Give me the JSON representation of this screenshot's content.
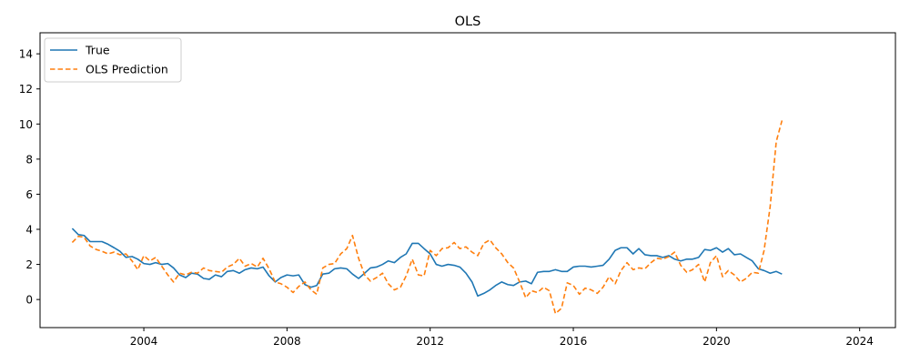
{
  "chart_data": {
    "type": "line",
    "title": "OLS",
    "xlabel": "",
    "ylabel": "",
    "xlim": [
      2001.1,
      2025.0
    ],
    "ylim": [
      -1.6,
      15.2
    ],
    "x_ticks": [
      2004,
      2008,
      2012,
      2016,
      2020,
      2024
    ],
    "x_tick_labels": [
      "2004",
      "2008",
      "2012",
      "2016",
      "2020",
      "2024"
    ],
    "y_ticks": [
      0,
      2,
      4,
      6,
      8,
      10,
      12,
      14
    ],
    "y_tick_labels": [
      "0",
      "2",
      "4",
      "6",
      "8",
      "10",
      "12",
      "14"
    ],
    "grid": false,
    "legend_position": "top-left",
    "series": [
      {
        "name": "True",
        "color": "#1f77b4",
        "dash": "solid",
        "points": [
          [
            2002.0,
            4.05
          ],
          [
            2002.17,
            3.7
          ],
          [
            2002.33,
            3.65
          ],
          [
            2002.5,
            3.3
          ],
          [
            2002.67,
            3.3
          ],
          [
            2002.83,
            3.3
          ],
          [
            2003.0,
            3.15
          ],
          [
            2003.17,
            2.95
          ],
          [
            2003.33,
            2.75
          ],
          [
            2003.5,
            2.4
          ],
          [
            2003.67,
            2.45
          ],
          [
            2003.83,
            2.3
          ],
          [
            2004.0,
            2.05
          ],
          [
            2004.17,
            2.0
          ],
          [
            2004.33,
            2.1
          ],
          [
            2004.5,
            2.0
          ],
          [
            2004.67,
            2.05
          ],
          [
            2004.83,
            1.8
          ],
          [
            2005.0,
            1.4
          ],
          [
            2005.17,
            1.25
          ],
          [
            2005.33,
            1.5
          ],
          [
            2005.5,
            1.45
          ],
          [
            2005.67,
            1.2
          ],
          [
            2005.83,
            1.15
          ],
          [
            2006.0,
            1.4
          ],
          [
            2006.17,
            1.3
          ],
          [
            2006.33,
            1.6
          ],
          [
            2006.5,
            1.65
          ],
          [
            2006.67,
            1.5
          ],
          [
            2006.83,
            1.7
          ],
          [
            2007.0,
            1.8
          ],
          [
            2007.17,
            1.75
          ],
          [
            2007.33,
            1.85
          ],
          [
            2007.5,
            1.35
          ],
          [
            2007.67,
            1.0
          ],
          [
            2007.83,
            1.25
          ],
          [
            2008.0,
            1.4
          ],
          [
            2008.17,
            1.35
          ],
          [
            2008.33,
            1.4
          ],
          [
            2008.5,
            0.85
          ],
          [
            2008.67,
            0.7
          ],
          [
            2008.83,
            0.8
          ],
          [
            2009.0,
            1.45
          ],
          [
            2009.17,
            1.5
          ],
          [
            2009.33,
            1.75
          ],
          [
            2009.5,
            1.8
          ],
          [
            2009.67,
            1.75
          ],
          [
            2009.83,
            1.45
          ],
          [
            2010.0,
            1.2
          ],
          [
            2010.17,
            1.5
          ],
          [
            2010.33,
            1.8
          ],
          [
            2010.5,
            1.85
          ],
          [
            2010.67,
            2.0
          ],
          [
            2010.83,
            2.2
          ],
          [
            2011.0,
            2.1
          ],
          [
            2011.17,
            2.4
          ],
          [
            2011.33,
            2.6
          ],
          [
            2011.5,
            3.2
          ],
          [
            2011.67,
            3.2
          ],
          [
            2011.83,
            2.9
          ],
          [
            2012.0,
            2.6
          ],
          [
            2012.17,
            2.0
          ],
          [
            2012.33,
            1.9
          ],
          [
            2012.5,
            2.0
          ],
          [
            2012.67,
            1.95
          ],
          [
            2012.83,
            1.85
          ],
          [
            2013.0,
            1.5
          ],
          [
            2013.17,
            1.0
          ],
          [
            2013.33,
            0.2
          ],
          [
            2013.5,
            0.35
          ],
          [
            2013.67,
            0.55
          ],
          [
            2013.83,
            0.8
          ],
          [
            2014.0,
            1.0
          ],
          [
            2014.17,
            0.85
          ],
          [
            2014.33,
            0.8
          ],
          [
            2014.5,
            1.0
          ],
          [
            2014.67,
            1.05
          ],
          [
            2014.83,
            0.9
          ],
          [
            2015.0,
            1.55
          ],
          [
            2015.17,
            1.6
          ],
          [
            2015.33,
            1.6
          ],
          [
            2015.5,
            1.7
          ],
          [
            2015.67,
            1.6
          ],
          [
            2015.83,
            1.6
          ],
          [
            2016.0,
            1.85
          ],
          [
            2016.17,
            1.9
          ],
          [
            2016.33,
            1.9
          ],
          [
            2016.5,
            1.85
          ],
          [
            2016.67,
            1.9
          ],
          [
            2016.83,
            1.95
          ],
          [
            2017.0,
            2.3
          ],
          [
            2017.17,
            2.8
          ],
          [
            2017.33,
            2.95
          ],
          [
            2017.5,
            2.95
          ],
          [
            2017.67,
            2.6
          ],
          [
            2017.83,
            2.9
          ],
          [
            2018.0,
            2.55
          ],
          [
            2018.17,
            2.5
          ],
          [
            2018.33,
            2.5
          ],
          [
            2018.5,
            2.4
          ],
          [
            2018.67,
            2.5
          ],
          [
            2018.83,
            2.3
          ],
          [
            2019.0,
            2.2
          ],
          [
            2019.17,
            2.3
          ],
          [
            2019.33,
            2.3
          ],
          [
            2019.5,
            2.4
          ],
          [
            2019.67,
            2.85
          ],
          [
            2019.83,
            2.8
          ],
          [
            2020.0,
            2.95
          ],
          [
            2020.17,
            2.7
          ],
          [
            2020.33,
            2.9
          ],
          [
            2020.5,
            2.55
          ],
          [
            2020.67,
            2.6
          ],
          [
            2020.83,
            2.4
          ],
          [
            2021.0,
            2.2
          ],
          [
            2021.17,
            1.75
          ],
          [
            2021.33,
            1.65
          ],
          [
            2021.5,
            1.5
          ],
          [
            2021.67,
            1.6
          ],
          [
            2021.83,
            1.45
          ]
        ]
      },
      {
        "name": "OLS Prediction",
        "color": "#ff7f0e",
        "dash": "dashed",
        "points": [
          [
            2002.0,
            3.25
          ],
          [
            2002.17,
            3.6
          ],
          [
            2002.33,
            3.55
          ],
          [
            2002.5,
            3.05
          ],
          [
            2002.67,
            2.85
          ],
          [
            2002.83,
            2.75
          ],
          [
            2003.0,
            2.6
          ],
          [
            2003.17,
            2.7
          ],
          [
            2003.33,
            2.55
          ],
          [
            2003.5,
            2.6
          ],
          [
            2003.67,
            2.2
          ],
          [
            2003.83,
            1.7
          ],
          [
            2004.0,
            2.5
          ],
          [
            2004.17,
            2.2
          ],
          [
            2004.33,
            2.4
          ],
          [
            2004.5,
            1.9
          ],
          [
            2004.67,
            1.4
          ],
          [
            2004.83,
            1.0
          ],
          [
            2005.0,
            1.5
          ],
          [
            2005.17,
            1.4
          ],
          [
            2005.33,
            1.55
          ],
          [
            2005.5,
            1.5
          ],
          [
            2005.67,
            1.8
          ],
          [
            2005.83,
            1.65
          ],
          [
            2006.0,
            1.6
          ],
          [
            2006.17,
            1.55
          ],
          [
            2006.33,
            1.85
          ],
          [
            2006.5,
            2.0
          ],
          [
            2006.67,
            2.35
          ],
          [
            2006.83,
            1.9
          ],
          [
            2007.0,
            2.05
          ],
          [
            2007.17,
            1.85
          ],
          [
            2007.33,
            2.35
          ],
          [
            2007.5,
            1.75
          ],
          [
            2007.67,
            1.0
          ],
          [
            2007.83,
            0.9
          ],
          [
            2008.0,
            0.7
          ],
          [
            2008.17,
            0.4
          ],
          [
            2008.33,
            0.75
          ],
          [
            2008.5,
            1.0
          ],
          [
            2008.67,
            0.55
          ],
          [
            2008.83,
            0.3
          ],
          [
            2009.0,
            1.8
          ],
          [
            2009.17,
            2.0
          ],
          [
            2009.33,
            2.05
          ],
          [
            2009.5,
            2.6
          ],
          [
            2009.67,
            2.9
          ],
          [
            2009.83,
            3.65
          ],
          [
            2010.0,
            2.35
          ],
          [
            2010.17,
            1.4
          ],
          [
            2010.33,
            1.05
          ],
          [
            2010.5,
            1.25
          ],
          [
            2010.67,
            1.5
          ],
          [
            2010.83,
            0.9
          ],
          [
            2011.0,
            0.55
          ],
          [
            2011.17,
            0.7
          ],
          [
            2011.33,
            1.35
          ],
          [
            2011.5,
            2.3
          ],
          [
            2011.67,
            1.4
          ],
          [
            2011.83,
            1.35
          ],
          [
            2012.0,
            2.8
          ],
          [
            2012.17,
            2.5
          ],
          [
            2012.33,
            2.9
          ],
          [
            2012.5,
            2.95
          ],
          [
            2012.67,
            3.25
          ],
          [
            2012.83,
            2.9
          ],
          [
            2013.0,
            3.0
          ],
          [
            2013.17,
            2.7
          ],
          [
            2013.33,
            2.5
          ],
          [
            2013.5,
            3.2
          ],
          [
            2013.67,
            3.4
          ],
          [
            2013.83,
            2.95
          ],
          [
            2014.0,
            2.6
          ],
          [
            2014.17,
            2.1
          ],
          [
            2014.33,
            1.8
          ],
          [
            2014.5,
            1.0
          ],
          [
            2014.67,
            0.1
          ],
          [
            2014.83,
            0.5
          ],
          [
            2015.0,
            0.4
          ],
          [
            2015.17,
            0.7
          ],
          [
            2015.33,
            0.5
          ],
          [
            2015.5,
            -0.8
          ],
          [
            2015.67,
            -0.5
          ],
          [
            2015.83,
            0.95
          ],
          [
            2016.0,
            0.8
          ],
          [
            2016.17,
            0.3
          ],
          [
            2016.33,
            0.65
          ],
          [
            2016.5,
            0.55
          ],
          [
            2016.67,
            0.35
          ],
          [
            2016.83,
            0.7
          ],
          [
            2017.0,
            1.3
          ],
          [
            2017.17,
            0.9
          ],
          [
            2017.33,
            1.65
          ],
          [
            2017.5,
            2.1
          ],
          [
            2017.67,
            1.7
          ],
          [
            2017.83,
            1.8
          ],
          [
            2018.0,
            1.75
          ],
          [
            2018.17,
            2.1
          ],
          [
            2018.33,
            2.35
          ],
          [
            2018.5,
            2.3
          ],
          [
            2018.67,
            2.45
          ],
          [
            2018.83,
            2.7
          ],
          [
            2019.0,
            1.95
          ],
          [
            2019.17,
            1.55
          ],
          [
            2019.33,
            1.7
          ],
          [
            2019.5,
            2.0
          ],
          [
            2019.67,
            1.0
          ],
          [
            2019.83,
            2.1
          ],
          [
            2020.0,
            2.5
          ],
          [
            2020.17,
            1.3
          ],
          [
            2020.33,
            1.65
          ],
          [
            2020.5,
            1.4
          ],
          [
            2020.67,
            1.0
          ],
          [
            2020.83,
            1.2
          ],
          [
            2021.0,
            1.55
          ],
          [
            2021.17,
            1.5
          ],
          [
            2021.33,
            2.8
          ],
          [
            2021.5,
            5.3
          ],
          [
            2021.67,
            9.0
          ],
          [
            2021.83,
            10.2
          ]
        ]
      }
    ]
  }
}
